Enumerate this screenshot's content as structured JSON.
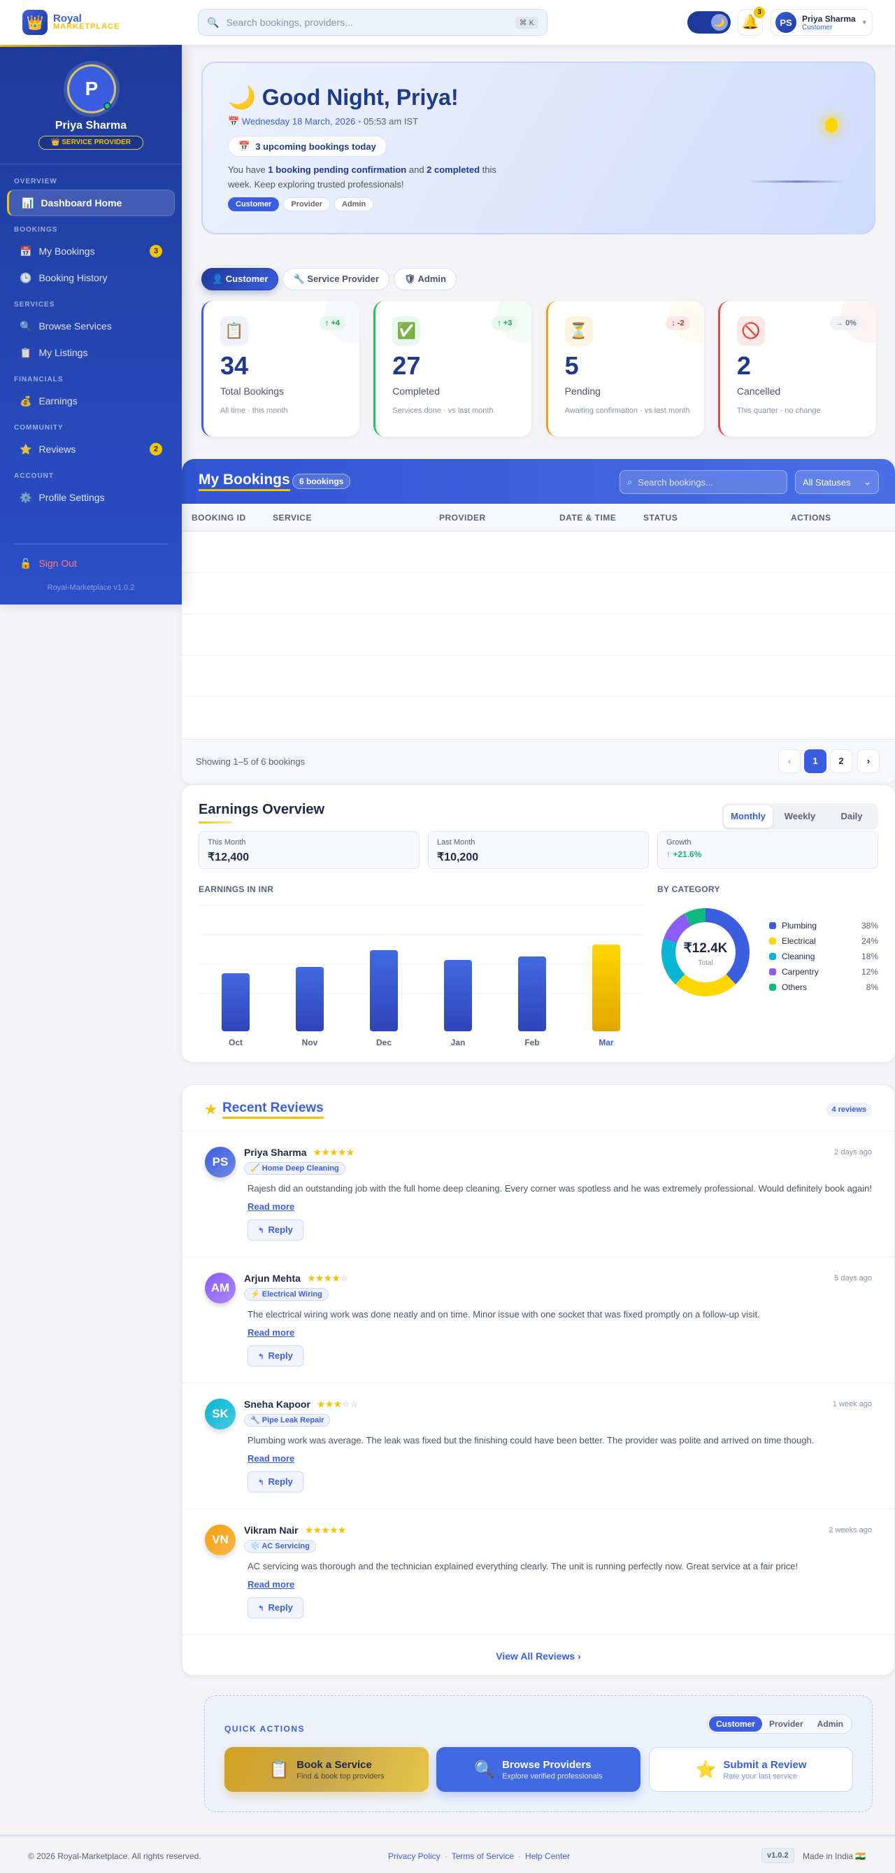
{
  "header": {
    "logo_icon": "crown-icon",
    "brand_top": "Royal",
    "brand_bottom": "MARKETPLACE",
    "search_placeholder": "Search bookings, providers...",
    "search_shortcut": "⌘ K",
    "theme_icon": "moon-icon",
    "notifications_count": "3",
    "user": {
      "initials": "PS",
      "name": "Priya Sharma",
      "role": "Customer"
    }
  },
  "sidebar": {
    "initial": "P",
    "name": "Priya Sharma",
    "badge": "👑 SERVICE PROVIDER",
    "sections": [
      {
        "title": "OVERVIEW",
        "items": [
          {
            "icon": "📊",
            "label": "Dashboard Home",
            "active": true
          }
        ]
      },
      {
        "title": "BOOKINGS",
        "items": [
          {
            "icon": "📅",
            "label": "My Bookings",
            "badge": "3"
          },
          {
            "icon": "🕒",
            "label": "Booking History"
          }
        ]
      },
      {
        "title": "SERVICES",
        "items": [
          {
            "icon": "🔍",
            "label": "Browse Services"
          },
          {
            "icon": "📋",
            "label": "My Listings"
          }
        ]
      },
      {
        "title": "FINANCIALS",
        "items": [
          {
            "icon": "💰",
            "label": "Earnings"
          }
        ]
      },
      {
        "title": "COMMUNITY",
        "items": [
          {
            "icon": "⭐",
            "label": "Reviews",
            "badge": "2"
          }
        ]
      },
      {
        "title": "ACCOUNT",
        "items": [
          {
            "icon": "⚙️",
            "label": "Profile Settings"
          }
        ]
      }
    ],
    "sign_out": "Sign Out",
    "version": "Royal-Marketplace v1.0.2"
  },
  "hero": {
    "title": "Good Night, Priya!",
    "date": "Wednesday 18 March, 2026",
    "time": "05:53 am IST",
    "upcoming": "3 upcoming bookings today",
    "msg_1": "You have ",
    "msg_b1": "1 booking pending confirmation",
    "msg_2": " and ",
    "msg_b2": "2 completed",
    "msg_3": " this week. Keep exploring trusted professionals!",
    "tags": [
      "Customer",
      "Provider",
      "Admin"
    ]
  },
  "role_tabs": [
    "👤 Customer",
    "🔧 Service Provider",
    "🛡 Admin"
  ],
  "stats": [
    {
      "icon": "📋",
      "change": "↑ +4",
      "value": "34",
      "label": "Total Bookings",
      "sub": "All time · this month",
      "color": "#3b5ee0"
    },
    {
      "icon": "✅",
      "change": "↑ +3",
      "value": "27",
      "label": "Completed",
      "sub": "Services done · vs last month",
      "color": "#22c55e"
    },
    {
      "icon": "⏳",
      "change": "↓ -2",
      "value": "5",
      "label": "Pending",
      "sub": "Awaiting confirmation · vs last month",
      "color": "#f59e0b"
    },
    {
      "icon": "🚫",
      "change": "→ 0%",
      "value": "2",
      "label": "Cancelled",
      "sub": "This quarter · no change",
      "color": "#ef4444"
    }
  ],
  "bookings": {
    "title": "My Bookings",
    "count": "6 bookings",
    "search_placeholder": "Search bookings...",
    "filter": "All Statuses",
    "columns": [
      "BOOKING ID",
      "SERVICE",
      "PROVIDER",
      "DATE & TIME",
      "STATUS",
      "ACTIONS"
    ],
    "showing": "Showing 1–5 of 6 bookings",
    "pages": [
      "1",
      "2"
    ],
    "current_page": 1
  },
  "earnings": {
    "title": "Earnings Overview",
    "tabs": [
      "Monthly",
      "Weekly",
      "Daily"
    ],
    "active_tab": "Monthly",
    "kpis": [
      {
        "label": "This Month",
        "value": "₹12,400"
      },
      {
        "label": "Last Month",
        "value": "₹10,200"
      },
      {
        "label": "Growth",
        "value": "↑ +21.6%"
      }
    ],
    "bar_caption": "EARNINGS IN INR",
    "donut_caption": "BY CATEGORY",
    "donut_total": "₹12.4K",
    "donut_total_label": "Total"
  },
  "chart_data": [
    {
      "type": "bar",
      "categories": [
        "Oct",
        "Nov",
        "Dec",
        "Jan",
        "Feb",
        "Mar"
      ],
      "values": [
        8300,
        9200,
        11600,
        10200,
        10700,
        12400
      ],
      "ylim": [
        0,
        18000
      ],
      "grid": true,
      "highlight": "Mar",
      "colors": {
        "bar": "#3b5ee0",
        "highlight": "#f5c400"
      }
    },
    {
      "type": "pie",
      "donut": true,
      "categories": [
        "Plumbing",
        "Electrical",
        "Cleaning",
        "Carpentry",
        "Others"
      ],
      "values": [
        38,
        24,
        18,
        12,
        8
      ],
      "labels": [
        "38%",
        "24%",
        "18%",
        "12%",
        "8%"
      ],
      "colors": [
        "#3b5ee0",
        "#ffd600",
        "#06b6d4",
        "#8b5cf6",
        "#10b981"
      ],
      "legend": "right"
    }
  ],
  "reviews": {
    "title": "Recent Reviews",
    "count": "4 reviews",
    "read_more": "Read more",
    "reply": "Reply",
    "view_all": "View All Reviews",
    "items": [
      {
        "initials": "PS",
        "name": "Priya Sharma",
        "rating": 5,
        "service": "🧹 Home Deep Cleaning",
        "time": "2 days ago",
        "text": "Rajesh did an outstanding job with the full home deep cleaning. Every corner was spotless and he was extremely professional. Would definitely book again!",
        "color": "#3b5ee0"
      },
      {
        "initials": "AM",
        "name": "Arjun Mehta",
        "rating": 4,
        "service": "⚡ Electrical Wiring",
        "time": "5 days ago",
        "text": "The electrical wiring work was done neatly and on time. Minor issue with one socket that was fixed promptly on a follow-up visit.",
        "color": "#8b5cf6"
      },
      {
        "initials": "SK",
        "name": "Sneha Kapoor",
        "rating": 3,
        "service": "🔧 Pipe Leak Repair",
        "time": "1 week ago",
        "text": "Plumbing work was average. The leak was fixed but the finishing could have been better. The provider was polite and arrived on time though.",
        "color": "#06b6d4"
      },
      {
        "initials": "VN",
        "name": "Vikram Nair",
        "rating": 5,
        "service": "❄️ AC Servicing",
        "time": "2 weeks ago",
        "text": "AC servicing was thorough and the technician explained everything clearly. The unit is running perfectly now. Great service at a fair price!",
        "color": "#f59e0b"
      }
    ]
  },
  "quick_actions": {
    "title": "QUICK ACTIONS",
    "tabs": [
      "Customer",
      "Provider",
      "Admin"
    ],
    "active_tab": "Customer",
    "buttons": [
      {
        "icon": "📋",
        "title": "Book a Service",
        "sub": "Find & book top providers"
      },
      {
        "icon": "🔍",
        "title": "Browse Providers",
        "sub": "Explore verified professionals"
      },
      {
        "icon": "⭐",
        "title": "Submit a Review",
        "sub": "Rate your last service"
      }
    ]
  },
  "footer": {
    "copyright": "© 2026 Royal-Marketplace. All rights reserved.",
    "links": [
      "Privacy Policy",
      "Terms of Service",
      "Help Center"
    ],
    "version": "v1.0.2",
    "made_in": "Made in India 🇮🇳"
  }
}
